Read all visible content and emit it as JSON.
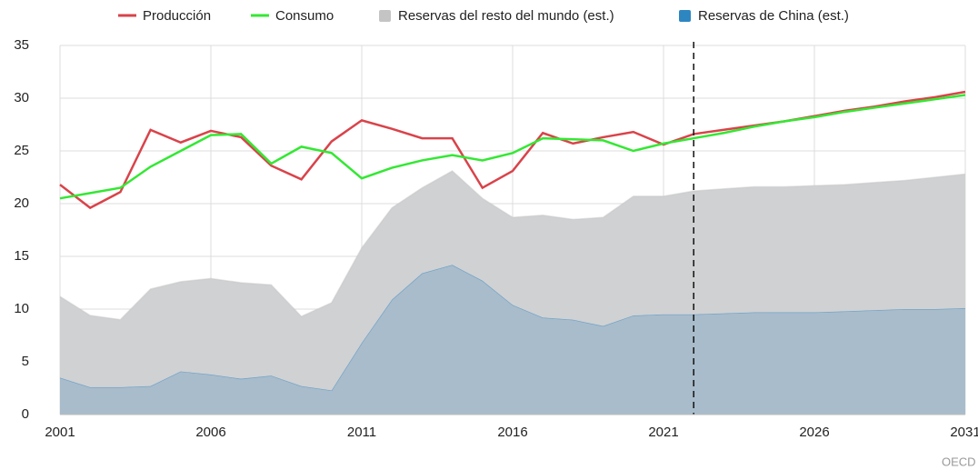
{
  "chart_data": {
    "type": "line",
    "source": "OECD",
    "x": [
      2001,
      2002,
      2003,
      2004,
      2005,
      2006,
      2007,
      2008,
      2009,
      2010,
      2011,
      2012,
      2013,
      2014,
      2015,
      2016,
      2017,
      2018,
      2019,
      2020,
      2021,
      2022,
      2023,
      2024,
      2025,
      2026,
      2027,
      2028,
      2029,
      2030,
      2031
    ],
    "xlim": [
      2001,
      2031
    ],
    "xticks": [
      2001,
      2006,
      2011,
      2016,
      2021,
      2026,
      2031
    ],
    "ylim": [
      0,
      35
    ],
    "yticks": [
      0,
      5,
      10,
      15,
      20,
      25,
      30,
      35
    ],
    "grid": true,
    "forecast_start": 2022,
    "series": [
      {
        "name": "Producción",
        "kind": "line",
        "color": "#d9434a",
        "values": [
          21.8,
          19.6,
          21.1,
          27.0,
          25.8,
          26.9,
          26.3,
          23.6,
          22.3,
          25.9,
          27.9,
          27.1,
          26.2,
          26.2,
          21.5,
          23.1,
          26.7,
          25.7,
          26.3,
          26.8,
          25.6,
          26.6,
          27.0,
          27.4,
          27.8,
          28.3,
          28.8,
          29.2,
          29.7,
          30.1,
          30.6
        ]
      },
      {
        "name": "Consumo",
        "kind": "line",
        "color": "#33e833",
        "values": [
          20.5,
          21.0,
          21.5,
          23.5,
          25.0,
          26.5,
          26.6,
          23.8,
          25.4,
          24.8,
          22.4,
          23.4,
          24.1,
          24.6,
          24.1,
          24.8,
          26.2,
          26.1,
          26.0,
          25.0,
          25.7,
          26.2,
          26.7,
          27.3,
          27.8,
          28.2,
          28.7,
          29.1,
          29.5,
          29.9,
          30.3
        ]
      },
      {
        "name": "Reservas del resto del mundo (est.)",
        "kind": "area",
        "color": "#c4c4c4",
        "area_color": "#d0d1d3",
        "values": [
          7.7,
          6.8,
          6.4,
          9.2,
          8.5,
          9.1,
          9.1,
          8.6,
          6.6,
          8.3,
          9.0,
          8.7,
          8.1,
          8.9,
          7.8,
          8.3,
          9.7,
          9.5,
          10.3,
          11.3,
          11.2,
          11.7,
          11.8,
          11.9,
          11.9,
          12.0,
          12.0,
          12.1,
          12.2,
          12.5,
          12.7
        ]
      },
      {
        "name": "Reservas de China (est.)",
        "kind": "area",
        "color": "#2e86c1",
        "area_color": "#a9bccb",
        "values": [
          3.5,
          2.6,
          2.6,
          2.7,
          4.1,
          3.8,
          3.4,
          3.7,
          2.7,
          2.3,
          6.8,
          10.9,
          13.4,
          14.2,
          12.7,
          10.4,
          9.2,
          9.0,
          8.4,
          9.4,
          9.5,
          9.5,
          9.6,
          9.7,
          9.7,
          9.7,
          9.8,
          9.9,
          10.0,
          10.0,
          10.1
        ]
      }
    ]
  }
}
